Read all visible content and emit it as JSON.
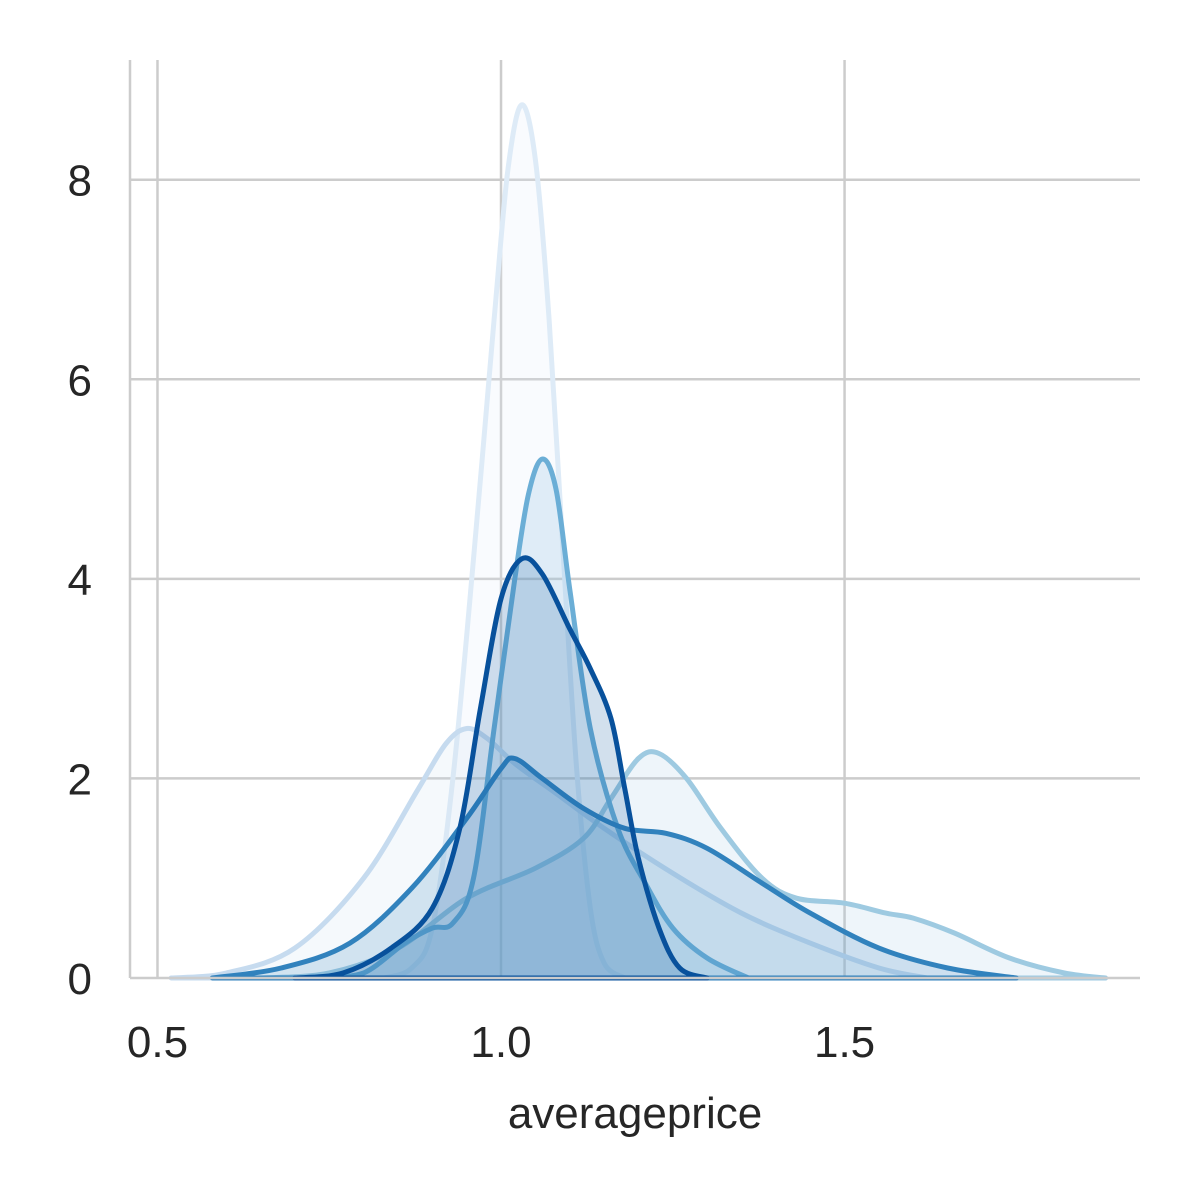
{
  "chart_data": {
    "type": "area",
    "title": "",
    "xlabel": "averageprice",
    "ylabel": "",
    "xlim": [
      0.46,
      1.93
    ],
    "ylim": [
      0,
      9.2
    ],
    "grid": true,
    "x_ticks": [
      0.5,
      1.0,
      1.5
    ],
    "x_tick_labels": [
      "0.5",
      "1.0",
      "1.5"
    ],
    "y_ticks": [
      0,
      2,
      4,
      6,
      8
    ],
    "y_tick_labels": [
      "0",
      "2",
      "4",
      "6",
      "8"
    ],
    "series": [
      {
        "color": "#deebf7",
        "points": [
          [
            0.83,
            0.0
          ],
          [
            0.87,
            0.1
          ],
          [
            0.9,
            0.5
          ],
          [
            0.93,
            2.0
          ],
          [
            0.96,
            4.2
          ],
          [
            0.99,
            6.6
          ],
          [
            1.01,
            8.1
          ],
          [
            1.03,
            8.75
          ],
          [
            1.05,
            8.2
          ],
          [
            1.07,
            6.6
          ],
          [
            1.09,
            4.3
          ],
          [
            1.11,
            2.1
          ],
          [
            1.13,
            0.7
          ],
          [
            1.15,
            0.15
          ],
          [
            1.18,
            0.0
          ]
        ]
      },
      {
        "color": "#c6dbef",
        "points": [
          [
            0.52,
            0.0
          ],
          [
            0.6,
            0.05
          ],
          [
            0.7,
            0.3
          ],
          [
            0.8,
            1.0
          ],
          [
            0.88,
            1.9
          ],
          [
            0.92,
            2.35
          ],
          [
            0.95,
            2.5
          ],
          [
            0.98,
            2.4
          ],
          [
            1.02,
            2.15
          ],
          [
            1.08,
            1.85
          ],
          [
            1.15,
            1.5
          ],
          [
            1.25,
            1.05
          ],
          [
            1.35,
            0.65
          ],
          [
            1.45,
            0.35
          ],
          [
            1.55,
            0.1
          ],
          [
            1.62,
            0.0
          ]
        ]
      },
      {
        "color": "#9ecae1",
        "points": [
          [
            0.65,
            0.0
          ],
          [
            0.75,
            0.05
          ],
          [
            0.85,
            0.3
          ],
          [
            0.95,
            0.8
          ],
          [
            1.05,
            1.1
          ],
          [
            1.12,
            1.4
          ],
          [
            1.16,
            1.8
          ],
          [
            1.2,
            2.2
          ],
          [
            1.23,
            2.25
          ],
          [
            1.27,
            2.0
          ],
          [
            1.32,
            1.5
          ],
          [
            1.38,
            1.0
          ],
          [
            1.43,
            0.8
          ],
          [
            1.5,
            0.75
          ],
          [
            1.56,
            0.65
          ],
          [
            1.6,
            0.6
          ],
          [
            1.66,
            0.45
          ],
          [
            1.74,
            0.2
          ],
          [
            1.82,
            0.05
          ],
          [
            1.88,
            0.0
          ]
        ]
      },
      {
        "color": "#6baed6",
        "points": [
          [
            0.74,
            0.0
          ],
          [
            0.8,
            0.05
          ],
          [
            0.86,
            0.35
          ],
          [
            0.9,
            0.5
          ],
          [
            0.93,
            0.55
          ],
          [
            0.96,
            1.0
          ],
          [
            0.99,
            2.5
          ],
          [
            1.02,
            4.0
          ],
          [
            1.04,
            4.85
          ],
          [
            1.06,
            5.2
          ],
          [
            1.08,
            4.9
          ],
          [
            1.1,
            3.9
          ],
          [
            1.13,
            2.5
          ],
          [
            1.17,
            1.5
          ],
          [
            1.21,
            0.95
          ],
          [
            1.25,
            0.5
          ],
          [
            1.3,
            0.2
          ],
          [
            1.36,
            0.0
          ]
        ]
      },
      {
        "color": "#3182bd",
        "points": [
          [
            0.58,
            0.0
          ],
          [
            0.68,
            0.1
          ],
          [
            0.78,
            0.35
          ],
          [
            0.87,
            0.9
          ],
          [
            0.95,
            1.6
          ],
          [
            1.0,
            2.1
          ],
          [
            1.02,
            2.2
          ],
          [
            1.06,
            2.0
          ],
          [
            1.12,
            1.7
          ],
          [
            1.18,
            1.5
          ],
          [
            1.24,
            1.45
          ],
          [
            1.3,
            1.3
          ],
          [
            1.38,
            0.95
          ],
          [
            1.45,
            0.65
          ],
          [
            1.55,
            0.3
          ],
          [
            1.65,
            0.1
          ],
          [
            1.75,
            0.0
          ]
        ]
      },
      {
        "color": "#08519c",
        "points": [
          [
            0.7,
            0.0
          ],
          [
            0.77,
            0.05
          ],
          [
            0.84,
            0.3
          ],
          [
            0.9,
            0.7
          ],
          [
            0.94,
            1.5
          ],
          [
            0.97,
            2.7
          ],
          [
            1.0,
            3.8
          ],
          [
            1.03,
            4.2
          ],
          [
            1.06,
            4.05
          ],
          [
            1.1,
            3.5
          ],
          [
            1.13,
            3.1
          ],
          [
            1.16,
            2.6
          ],
          [
            1.18,
            1.9
          ],
          [
            1.2,
            1.2
          ],
          [
            1.23,
            0.5
          ],
          [
            1.26,
            0.1
          ],
          [
            1.3,
            0.0
          ]
        ]
      }
    ]
  }
}
